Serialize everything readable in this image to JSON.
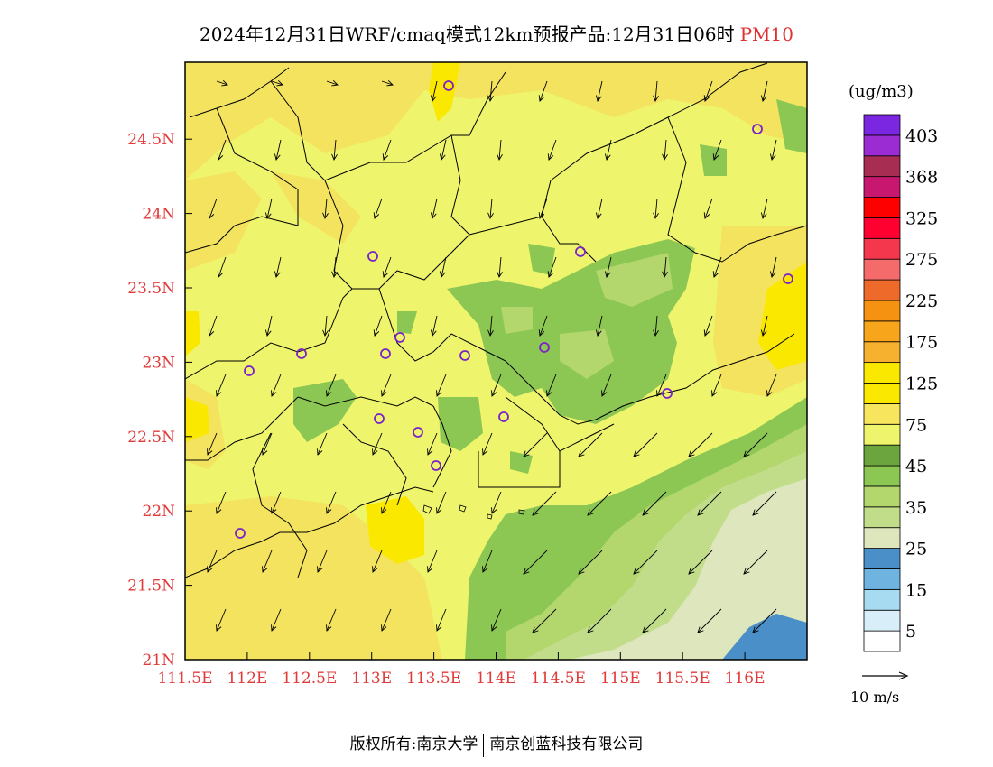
{
  "title": {
    "main": "2024年12月31日WRF/cmaq模式12km预报产品:12月31日06时",
    "pollutant": "PM10"
  },
  "axes": {
    "x_ticks": [
      "111.5E",
      "112E",
      "112.5E",
      "113E",
      "113.5E",
      "114E",
      "114.5E",
      "115E",
      "115.5E",
      "116E"
    ],
    "y_ticks": [
      "21N",
      "21.5N",
      "22N",
      "22.5N",
      "23N",
      "23.5N",
      "24N",
      "24.5N"
    ]
  },
  "colorbar": {
    "unit": "(ug/m3)",
    "labels": [
      "5",
      "15",
      "25",
      "35",
      "45",
      "75",
      "125",
      "175",
      "225",
      "275",
      "325",
      "368",
      "403"
    ],
    "colors": [
      "#ffffff",
      "#d8eef9",
      "#a6dbf1",
      "#6fb3e0",
      "#4a8fc7",
      "#dde6bc",
      "#c2dd8a",
      "#b3d66d",
      "#8cc753",
      "#6ca53e",
      "#eef56c",
      "#f7e55e",
      "#fbe800",
      "#fbe800",
      "#f6b12e",
      "#f7a51b",
      "#f59212",
      "#ed6a2a",
      "#f56b6b",
      "#f5374e",
      "#ff0031",
      "#ff0000",
      "#c8176f",
      "#a72d53",
      "#9b2bd2",
      "#7b27e1"
    ]
  },
  "vector_legend": {
    "label": "10 m/s"
  },
  "stations_count_note": "",
  "footer": {
    "left": "版权所有:南京大学",
    "right": "南京创蓝科技有限公司"
  },
  "colors": {
    "axis_red": "#e03a3a",
    "station_purple": "#7b22c8"
  }
}
